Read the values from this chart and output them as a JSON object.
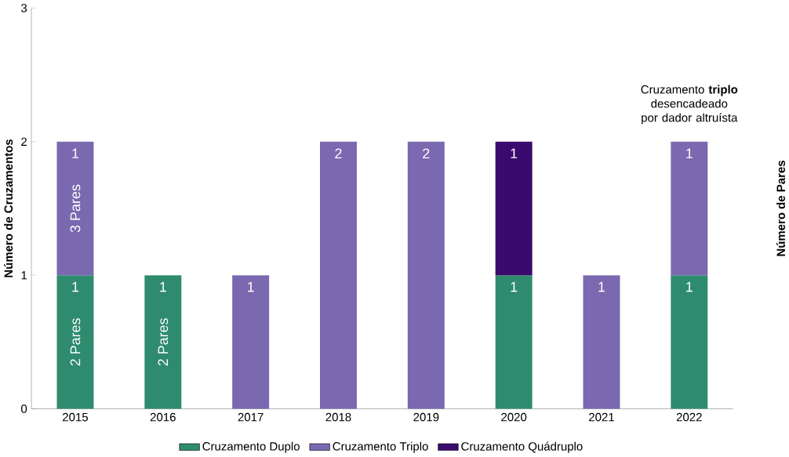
{
  "chart_data": {
    "type": "bar",
    "stacked": true,
    "ylabel": "Número de Cruzamentos",
    "y2label": "Número de Pares",
    "categories": [
      "2015",
      "2016",
      "2017",
      "2018",
      "2019",
      "2020",
      "2021",
      "2022"
    ],
    "series": [
      {
        "name": "Cruzamento Duplo",
        "color": "#2e8b6e",
        "values": [
          1,
          1,
          null,
          null,
          null,
          1,
          null,
          1
        ],
        "value_labels": [
          "1",
          "1",
          null,
          null,
          null,
          "1",
          null,
          "1"
        ]
      },
      {
        "name": "Cruzamento Triplo",
        "color": "#7a68b0",
        "values": [
          1,
          null,
          1,
          2,
          2,
          null,
          1,
          1
        ],
        "value_labels": [
          "1",
          null,
          "1",
          "2",
          "2",
          null,
          "1",
          "1"
        ]
      },
      {
        "name": "Cruzamento Quádruplo",
        "color": "#3b0a6e",
        "values": [
          null,
          null,
          null,
          null,
          null,
          1,
          null,
          null
        ],
        "value_labels": [
          null,
          null,
          null,
          null,
          null,
          "1",
          null,
          null
        ]
      }
    ],
    "ylim": [
      0,
      3
    ],
    "yticks": [
      0,
      1,
      2,
      3
    ],
    "legend": "bottom",
    "annotations": [
      "2 Pares",
      "3 Pares",
      "2 Pares",
      "Cruzamento **triplo** desencadeado por dador altruísta"
    ]
  }
}
